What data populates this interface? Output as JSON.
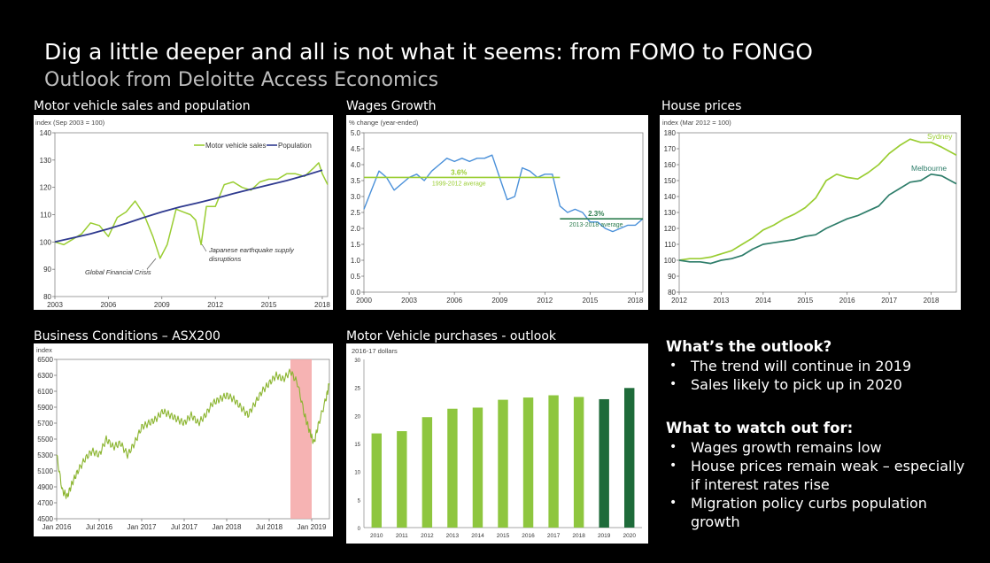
{
  "slide": {
    "title": "Dig a little deeper and all is not what it seems: from FOMO to FONGO",
    "subtitle": "Outlook from Deloitte Access Economics"
  },
  "chart_data": [
    {
      "id": "motor",
      "panel_title": "Motor vehicle sales and population",
      "type": "line",
      "ylabel": "index (Sep 2003 = 100)",
      "ylim": [
        80,
        140
      ],
      "yticks": [
        80,
        90,
        100,
        110,
        120,
        130,
        140
      ],
      "xlim": [
        2003,
        2018.3
      ],
      "xticks": [
        2003,
        2006,
        2009,
        2012,
        2015,
        2018
      ],
      "series": [
        {
          "name": "Motor vehicle sales",
          "color": "#9acd32",
          "x": [
            2003,
            2003.5,
            2004,
            2004.5,
            2005,
            2005.5,
            2006,
            2006.5,
            2007,
            2007.5,
            2008,
            2008.5,
            2008.9,
            2009.3,
            2009.8,
            2010.2,
            2010.6,
            2010.9,
            2011.2,
            2011.5,
            2012,
            2012.5,
            2013,
            2013.5,
            2014,
            2014.5,
            2015,
            2015.5,
            2016,
            2016.5,
            2017,
            2017.5,
            2017.8,
            2018,
            2018.3
          ],
          "y": [
            100,
            99,
            101,
            103,
            107,
            106,
            102,
            109,
            111,
            115,
            110,
            102,
            94,
            99,
            112,
            111,
            110,
            108,
            99,
            113,
            113,
            121,
            122,
            120,
            119,
            122,
            123,
            123,
            125,
            125,
            124,
            127,
            129,
            125,
            121
          ]
        },
        {
          "name": "Population",
          "color": "#2f3a8f",
          "x": [
            2003,
            2004,
            2005,
            2006,
            2007,
            2008,
            2009,
            2010,
            2011,
            2012,
            2013,
            2014,
            2015,
            2016,
            2017,
            2018
          ],
          "y": [
            100,
            101.5,
            103,
            104.8,
            106.8,
            109,
            111,
            112.8,
            114.3,
            115.9,
            117.7,
            119.3,
            120.9,
            122.5,
            124.3,
            126.3
          ]
        }
      ],
      "annotations": [
        "Global Financial Crisis",
        "Japanese earthquake supply disruptions"
      ]
    },
    {
      "id": "wages",
      "panel_title": "Wages Growth",
      "type": "line",
      "ylabel": "% change (year-ended)",
      "ylim": [
        0,
        5
      ],
      "yticks": [
        0.0,
        0.5,
        1.0,
        1.5,
        2.0,
        2.5,
        3.0,
        3.5,
        4.0,
        4.5,
        5.0
      ],
      "xlim": [
        2000,
        2018.5
      ],
      "xticks": [
        2000,
        2003,
        2006,
        2009,
        2012,
        2015,
        2018
      ],
      "series": [
        {
          "name": "Wages",
          "color": "#4a90d9",
          "x": [
            2000,
            2000.5,
            2001,
            2001.5,
            2002,
            2002.5,
            2003,
            2003.5,
            2004,
            2004.5,
            2005,
            2005.5,
            2006,
            2006.5,
            2007,
            2007.5,
            2008,
            2008.5,
            2009,
            2009.5,
            2010,
            2010.5,
            2011,
            2011.5,
            2012,
            2012.5,
            2013,
            2013.5,
            2014,
            2014.5,
            2015,
            2015.5,
            2016,
            2016.5,
            2017,
            2017.5,
            2018,
            2018.5
          ],
          "y": [
            2.6,
            3.2,
            3.8,
            3.6,
            3.2,
            3.4,
            3.6,
            3.7,
            3.5,
            3.8,
            4.0,
            4.2,
            4.1,
            4.2,
            4.1,
            4.2,
            4.2,
            4.3,
            3.6,
            2.9,
            3.0,
            3.9,
            3.8,
            3.6,
            3.7,
            3.7,
            2.7,
            2.5,
            2.6,
            2.5,
            2.2,
            2.2,
            2.0,
            1.9,
            2.0,
            2.1,
            2.1,
            2.3
          ]
        }
      ],
      "reference_lines": [
        {
          "label": "3.6%",
          "sublabel": "1999-2012 average",
          "value": 3.6,
          "x": [
            2000,
            2013
          ],
          "color": "#9acd32"
        },
        {
          "label": "2.3%",
          "sublabel": "2013-2018 average",
          "value": 2.3,
          "x": [
            2013,
            2018.5
          ],
          "color": "#2e7d4f"
        }
      ]
    },
    {
      "id": "house",
      "panel_title": "House prices",
      "type": "line",
      "ylabel": "index (Mar 2012 = 100)",
      "ylim": [
        80,
        180
      ],
      "yticks": [
        80,
        90,
        100,
        110,
        120,
        130,
        140,
        150,
        160,
        170,
        180
      ],
      "xlim": [
        2012,
        2018.6
      ],
      "xticks": [
        2012,
        2013,
        2014,
        2015,
        2016,
        2017,
        2018
      ],
      "series": [
        {
          "name": "Sydney",
          "color": "#9acd32",
          "x": [
            2012,
            2012.25,
            2012.5,
            2012.75,
            2013,
            2013.25,
            2013.5,
            2013.75,
            2014,
            2014.25,
            2014.5,
            2014.75,
            2015,
            2015.25,
            2015.5,
            2015.75,
            2016,
            2016.25,
            2016.5,
            2016.75,
            2017,
            2017.25,
            2017.5,
            2017.75,
            2018,
            2018.25,
            2018.6
          ],
          "y": [
            100,
            101,
            101,
            102,
            104,
            106,
            110,
            114,
            119,
            122,
            126,
            129,
            133,
            139,
            150,
            154,
            152,
            151,
            155,
            160,
            167,
            172,
            176,
            174,
            174,
            171,
            166
          ]
        },
        {
          "name": "Melbourne",
          "color": "#2e7d6a",
          "x": [
            2012,
            2012.25,
            2012.5,
            2012.75,
            2013,
            2013.25,
            2013.5,
            2013.75,
            2014,
            2014.25,
            2014.5,
            2014.75,
            2015,
            2015.25,
            2015.5,
            2015.75,
            2016,
            2016.25,
            2016.5,
            2016.75,
            2017,
            2017.25,
            2017.5,
            2017.75,
            2018,
            2018.25,
            2018.6
          ],
          "y": [
            100,
            99,
            99,
            98,
            100,
            101,
            103,
            107,
            110,
            111,
            112,
            113,
            115,
            116,
            120,
            123,
            126,
            128,
            131,
            134,
            141,
            145,
            149,
            150,
            154,
            153,
            148
          ]
        }
      ]
    },
    {
      "id": "asx",
      "panel_title": "Business Conditions – ASX200",
      "type": "line",
      "ylabel": "index",
      "ylim": [
        4500,
        6500
      ],
      "yticks": [
        4500,
        4700,
        4900,
        5100,
        5300,
        5500,
        5700,
        5900,
        6100,
        6300,
        6500
      ],
      "xticks": [
        "Jan 2016",
        "Jul 2016",
        "Jan 2017",
        "Jul 2017",
        "Jan 2018",
        "Jul 2018",
        "Jan 2019"
      ],
      "xrange_months": [
        0,
        38.5
      ],
      "highlight_months": [
        33.0,
        36.0
      ],
      "highlight_color": "#f4a6a6",
      "series": [
        {
          "name": "ASX200",
          "color": "#8ab42e",
          "x": [
            0,
            0.8,
            1.5,
            2.2,
            3,
            4,
            5,
            6,
            7,
            8,
            9,
            10,
            11,
            12,
            13,
            14,
            15,
            16,
            17,
            18,
            19,
            20,
            21,
            22,
            23,
            24,
            25,
            26,
            27,
            28,
            29,
            30,
            31,
            32,
            33,
            34,
            35,
            35.7,
            36.3,
            37,
            38,
            38.5
          ],
          "y": [
            5300,
            4850,
            4780,
            4950,
            5100,
            5250,
            5350,
            5300,
            5500,
            5400,
            5450,
            5300,
            5450,
            5650,
            5700,
            5750,
            5850,
            5800,
            5750,
            5700,
            5800,
            5700,
            5800,
            5950,
            6000,
            6050,
            6000,
            5900,
            5800,
            5950,
            6100,
            6200,
            6300,
            6250,
            6350,
            6200,
            5800,
            5600,
            5450,
            5700,
            6000,
            6200
          ]
        }
      ]
    },
    {
      "id": "purchases",
      "panel_title": "Motor Vehicle purchases - outlook",
      "type": "bar",
      "ylabel": "2016-17 dollars",
      "ylim": [
        0,
        30
      ],
      "yticks": [
        0,
        5,
        10,
        15,
        20,
        25,
        30
      ],
      "categories": [
        "2010",
        "2011",
        "2012",
        "2013",
        "2014",
        "2015",
        "2016",
        "2017",
        "2018",
        "2019",
        "2020"
      ],
      "values": [
        16.8,
        17.2,
        19.7,
        21.2,
        21.4,
        22.8,
        23.2,
        23.6,
        23.3,
        22.9,
        24.9
      ],
      "colors": [
        "#8ec63f",
        "#8ec63f",
        "#8ec63f",
        "#8ec63f",
        "#8ec63f",
        "#8ec63f",
        "#8ec63f",
        "#8ec63f",
        "#8ec63f",
        "#1e6b3a",
        "#1e6b3a"
      ]
    }
  ],
  "outlook": {
    "heading": "What’s the outlook?",
    "items": [
      "The trend will continue in 2019",
      "Sales likely to pick up in 2020"
    ]
  },
  "watch": {
    "heading": "What to watch out for:",
    "items": [
      "Wages growth remains low",
      "House prices remain weak – especially if interest rates rise",
      "Migration policy curbs population growth"
    ]
  }
}
